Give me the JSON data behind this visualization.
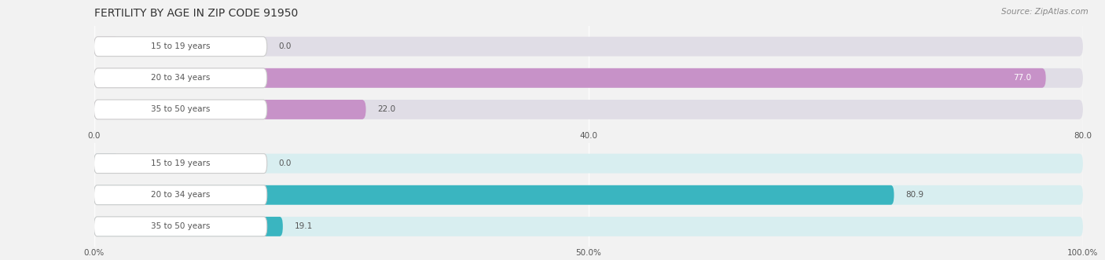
{
  "title": "FERTILITY BY AGE IN ZIP CODE 91950",
  "source_text": "Source: ZipAtlas.com",
  "top_chart": {
    "categories": [
      "15 to 19 years",
      "20 to 34 years",
      "35 to 50 years"
    ],
    "values": [
      0.0,
      77.0,
      22.0
    ],
    "bar_color": "#c792c8",
    "bg_color": "#e0dde6",
    "xlim": [
      0,
      80
    ],
    "xticks": [
      0.0,
      40.0,
      80.0
    ],
    "xtick_labels": [
      "0.0",
      "40.0",
      "80.0"
    ]
  },
  "bottom_chart": {
    "categories": [
      "15 to 19 years",
      "20 to 34 years",
      "35 to 50 years"
    ],
    "values": [
      0.0,
      80.9,
      19.1
    ],
    "bar_color": "#3ab5c0",
    "bg_color": "#d8eef0",
    "xlim": [
      0,
      100
    ],
    "xticks": [
      0.0,
      50.0,
      100.0
    ],
    "xtick_labels": [
      "0.0%",
      "50.0%",
      "100.0%"
    ]
  },
  "label_color": "#555555",
  "title_color": "#333333",
  "source_color": "#888888",
  "title_fontsize": 10,
  "label_fontsize": 7.5,
  "value_fontsize": 7.5,
  "tick_fontsize": 7.5,
  "source_fontsize": 7.5,
  "bg_color": "#f2f2f2"
}
